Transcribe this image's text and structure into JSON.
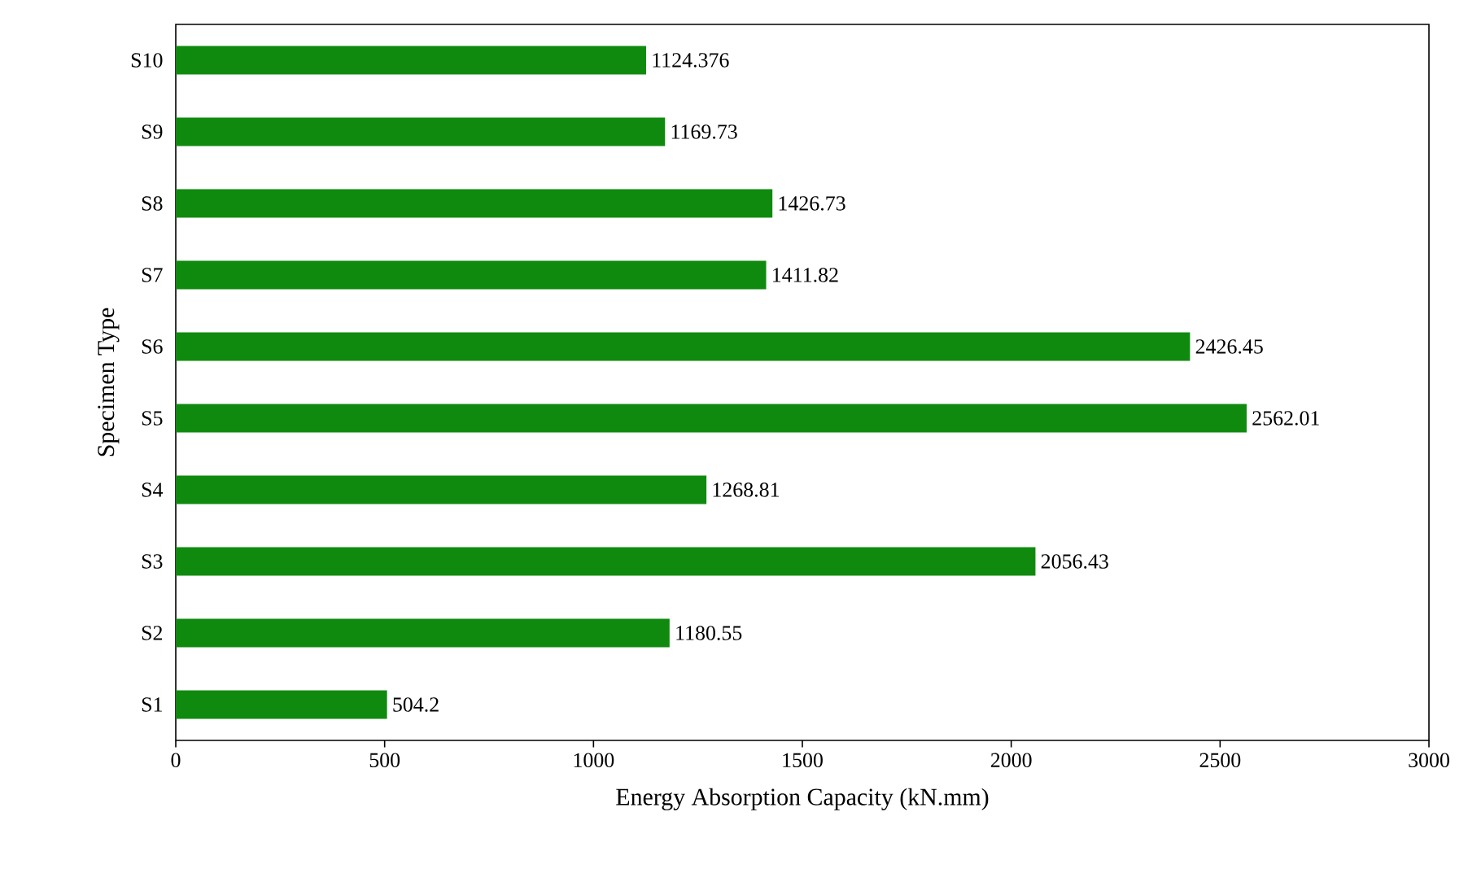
{
  "chart_data": {
    "type": "bar",
    "orientation": "horizontal",
    "xlabel": "Energy Absorption Capacity (kN.mm)",
    "ylabel": "Specimen Type",
    "categories": [
      "S10",
      "S9",
      "S8",
      "S7",
      "S6",
      "S5",
      "S4",
      "S3",
      "S2",
      "S1"
    ],
    "values": [
      1124.376,
      1169.73,
      1426.73,
      1411.82,
      2426.45,
      2562.01,
      1268.81,
      2056.43,
      1180.55,
      504.2
    ],
    "color": "#0f8a0f",
    "data_labels": true,
    "xlim": [
      0,
      3000
    ],
    "xticks": [
      0,
      500,
      1000,
      1500,
      2000,
      2500,
      3000
    ],
    "grid": false
  }
}
